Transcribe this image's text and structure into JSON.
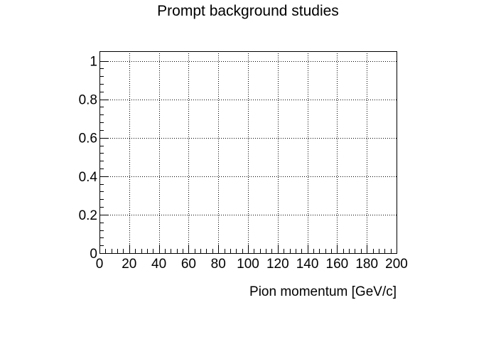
{
  "chart_data": {
    "type": "line",
    "title": "Prompt background studies",
    "xlabel": "Pion momentum [GeV/c]",
    "ylabel": "",
    "xlim": [
      0,
      200
    ],
    "ylim": [
      0,
      1.05
    ],
    "x_ticks": [
      0,
      20,
      40,
      60,
      80,
      100,
      120,
      140,
      160,
      180,
      200
    ],
    "x_tick_labels": [
      "0",
      "20",
      "40",
      "60",
      "80",
      "100",
      "120",
      "140",
      "160",
      "180",
      "200"
    ],
    "y_ticks": [
      0,
      0.2,
      0.4,
      0.6,
      0.8,
      1
    ],
    "y_tick_labels": [
      "0",
      "0.2",
      "0.4",
      "0.6",
      "0.8",
      "1"
    ],
    "grid": true,
    "legend": "none",
    "series": []
  }
}
